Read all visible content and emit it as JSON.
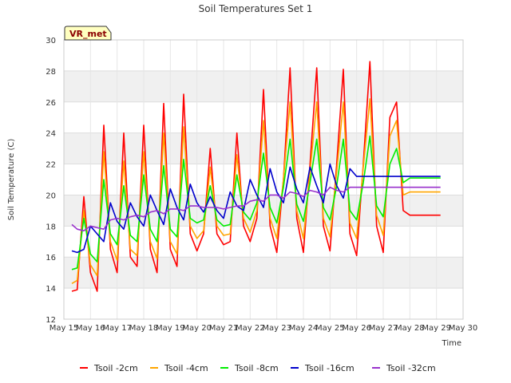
{
  "chart_data": {
    "type": "line",
    "title": "Soil Temperatures Set 1",
    "xlabel": "Time",
    "ylabel": "Soil Temperature (C)",
    "site_tag": "VR_met",
    "xlim": [
      "May 15",
      "May 30"
    ],
    "ylim": [
      12,
      30
    ],
    "x_ticks": [
      "May 15",
      "May 16",
      "May 17",
      "May 18",
      "May 19",
      "May 20",
      "May 21",
      "May 22",
      "May 23",
      "May 24",
      "May 25",
      "May 26",
      "May 27",
      "May 28",
      "May 29",
      "May 30"
    ],
    "y_ticks": [
      12,
      14,
      16,
      18,
      20,
      22,
      24,
      26,
      28,
      30
    ],
    "grid": true,
    "band_shading": true,
    "legend_position": "bottom",
    "x_sample_days": [
      15.3,
      15.5,
      15.75,
      16.0,
      16.25,
      16.5,
      16.75,
      17.0,
      17.25,
      17.5,
      17.75,
      18.0,
      18.25,
      18.5,
      18.75,
      19.0,
      19.25,
      19.5,
      19.75,
      20.0,
      20.25,
      20.5,
      20.75,
      21.0,
      21.25,
      21.5,
      21.75,
      22.0,
      22.25,
      22.5,
      22.75,
      23.0,
      23.25,
      23.5,
      23.75,
      24.0,
      24.25,
      24.5,
      24.75,
      25.0,
      25.25,
      25.5,
      25.75,
      26.0,
      26.25,
      26.5,
      26.75,
      27.0,
      27.25,
      27.5,
      27.75,
      28.0,
      28.25,
      28.5,
      28.75,
      29.0,
      29.15
    ],
    "series": [
      {
        "name": "Tsoil -2cm",
        "color": "#ff0000",
        "values": [
          13.8,
          13.9,
          19.9,
          15.0,
          13.8,
          24.5,
          16.5,
          15.0,
          24.0,
          16.0,
          15.4,
          24.5,
          16.5,
          15.0,
          25.9,
          16.5,
          15.4,
          26.5,
          17.5,
          16.4,
          17.5,
          23.0,
          17.5,
          16.8,
          17.0,
          24.0,
          18.0,
          17.0,
          18.5,
          26.8,
          18.0,
          16.3,
          21.0,
          28.2,
          18.5,
          16.3,
          22.0,
          28.2,
          18.0,
          16.4,
          22.0,
          28.1,
          17.5,
          16.1,
          22.0,
          28.6,
          18.0,
          16.3,
          25.0,
          26.0,
          19.0,
          18.7,
          18.7,
          18.7,
          18.7,
          18.7,
          18.7
        ]
      },
      {
        "name": "Tsoil -4cm",
        "color": "#ffa500",
        "values": [
          14.3,
          14.5,
          19.0,
          15.5,
          14.8,
          22.8,
          17.0,
          15.8,
          22.2,
          16.5,
          16.1,
          22.8,
          17.0,
          15.9,
          24.0,
          17.0,
          16.2,
          24.4,
          18.0,
          17.2,
          17.7,
          21.8,
          18.0,
          17.4,
          17.5,
          22.6,
          18.5,
          17.6,
          19.0,
          24.8,
          18.5,
          17.2,
          21.0,
          26.0,
          19.0,
          17.2,
          21.5,
          26.0,
          18.5,
          17.3,
          21.5,
          26.0,
          18.2,
          17.2,
          21.8,
          26.2,
          18.7,
          17.4,
          23.8,
          24.8,
          20.0,
          20.2,
          20.2,
          20.2,
          20.2,
          20.2,
          20.2
        ]
      },
      {
        "name": "Tsoil -8cm",
        "color": "#00ee00",
        "values": [
          15.2,
          15.3,
          18.5,
          16.2,
          15.7,
          21.0,
          17.5,
          16.8,
          20.6,
          17.4,
          17.0,
          21.3,
          17.8,
          17.0,
          21.9,
          17.8,
          17.3,
          22.3,
          18.5,
          18.2,
          18.4,
          20.6,
          18.4,
          18.0,
          18.1,
          21.3,
          18.9,
          18.4,
          19.5,
          22.7,
          19.2,
          18.2,
          20.5,
          23.6,
          19.4,
          18.3,
          20.8,
          23.6,
          19.2,
          18.4,
          20.6,
          23.6,
          19.0,
          18.4,
          20.8,
          23.8,
          19.3,
          18.6,
          22.0,
          23.0,
          20.8,
          21.1,
          21.1,
          21.1,
          21.1,
          21.1,
          21.1
        ]
      },
      {
        "name": "Tsoil -16cm",
        "color": "#0000cc",
        "values": [
          16.4,
          16.3,
          16.5,
          18.0,
          17.5,
          17.0,
          19.5,
          18.3,
          17.8,
          19.5,
          18.6,
          18.0,
          20.0,
          19.0,
          18.1,
          20.4,
          19.2,
          18.4,
          20.7,
          19.5,
          18.9,
          19.9,
          19.0,
          18.5,
          20.2,
          19.3,
          19.0,
          21.0,
          20.0,
          19.2,
          21.7,
          20.2,
          19.5,
          21.8,
          20.4,
          19.5,
          21.8,
          20.6,
          19.5,
          22.0,
          20.6,
          19.8,
          21.7,
          21.2,
          21.2,
          21.2,
          21.2,
          21.2,
          21.2,
          21.2,
          21.2,
          21.2,
          21.2,
          21.2,
          21.2,
          21.2,
          21.2
        ]
      },
      {
        "name": "Tsoil -32cm",
        "color": "#9932cc",
        "values": [
          18.1,
          17.8,
          17.7,
          18.0,
          17.9,
          17.8,
          18.4,
          18.5,
          18.4,
          18.6,
          18.7,
          18.6,
          18.9,
          19.0,
          18.8,
          19.1,
          19.1,
          19.0,
          19.3,
          19.3,
          19.2,
          19.2,
          19.2,
          19.1,
          19.2,
          19.3,
          19.3,
          19.6,
          19.7,
          19.6,
          20.0,
          20.0,
          19.8,
          20.2,
          20.1,
          19.9,
          20.3,
          20.2,
          20.0,
          20.5,
          20.3,
          20.2,
          20.5,
          20.5,
          20.5,
          20.5,
          20.5,
          20.5,
          20.5,
          20.5,
          20.5,
          20.5,
          20.5,
          20.5,
          20.5,
          20.5,
          20.5
        ]
      }
    ]
  }
}
